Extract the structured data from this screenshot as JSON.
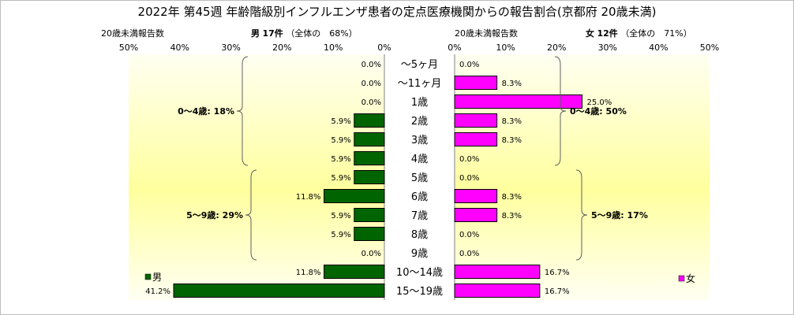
{
  "title": "2022年 第45週  年齢階級別インフルエンザ患者の定点医療機関からの報告割合(京都府 20歳未満)",
  "left_header": {
    "caption": "20歳未満報告数",
    "sex": "男",
    "count": "17件",
    "share": "（全体の　68%）"
  },
  "right_header": {
    "caption": "20歳未満報告数",
    "sex": "女",
    "count": "12件",
    "share": "（全体の　71%）"
  },
  "chart_data": {
    "type": "bar",
    "orientation": "horizontal-butterfly",
    "categories": [
      "～5ヶ月",
      "～11ヶ月",
      "1歳",
      "2歳",
      "3歳",
      "4歳",
      "5歳",
      "6歳",
      "7歳",
      "8歳",
      "9歳",
      "10～14歳",
      "15～19歳"
    ],
    "series": [
      {
        "name": "男",
        "values": [
          0.0,
          0.0,
          0.0,
          5.9,
          5.9,
          5.9,
          5.9,
          11.8,
          5.9,
          5.9,
          0.0,
          11.8,
          41.2
        ],
        "color": "#006400"
      },
      {
        "name": "女",
        "values": [
          0.0,
          8.3,
          25.0,
          8.3,
          8.3,
          0.0,
          0.0,
          8.3,
          8.3,
          0.0,
          0.0,
          16.7,
          16.7
        ],
        "color": "#ff00ff"
      }
    ],
    "xlim": [
      0,
      50
    ],
    "x_ticks": [
      "50%",
      "40%",
      "30%",
      "20%",
      "10%",
      "0%"
    ],
    "x_ticks_right": [
      "0%",
      "10%",
      "20%",
      "30%",
      "40%",
      "50%"
    ],
    "groups_left": [
      {
        "label": "0～4歳: 18%",
        "from": 0,
        "to": 5
      },
      {
        "label": "5～9歳: 29%",
        "from": 6,
        "to": 10
      }
    ],
    "groups_right": [
      {
        "label": "0～4歳: 50%",
        "from": 0,
        "to": 5
      },
      {
        "label": "5～9歳: 17%",
        "from": 6,
        "to": 10
      }
    ],
    "legend_placement": "bottom-left / bottom-right"
  },
  "colors": {
    "male": "#006400",
    "female": "#ff00ff",
    "plot_gradient_edge": "#fffff0",
    "plot_gradient_center": "#ffff99"
  }
}
